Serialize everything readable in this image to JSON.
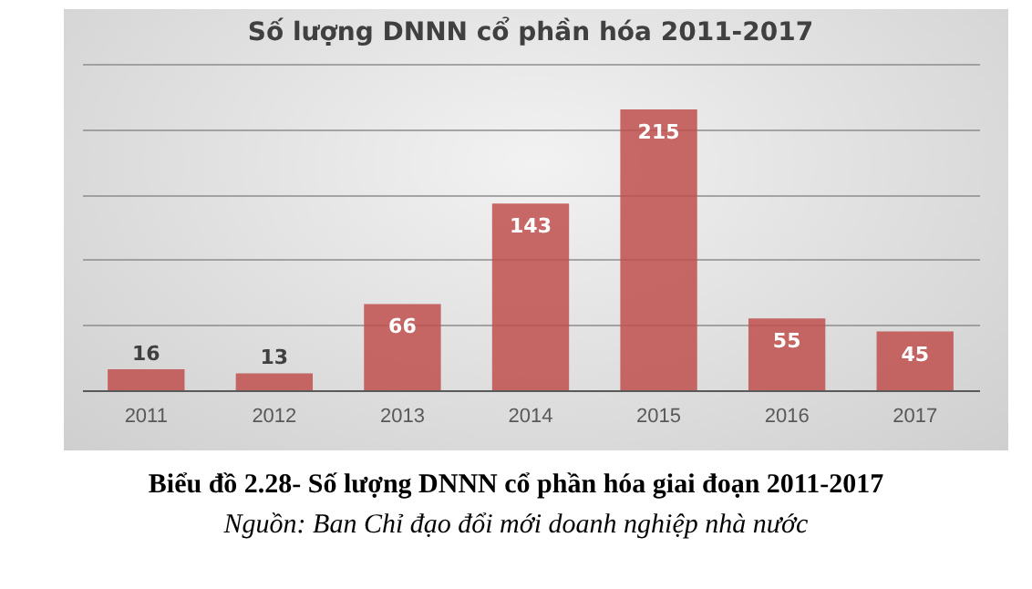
{
  "chart_data": {
    "type": "bar",
    "title": "Số lượng DNNN cổ phần hóa 2011-2017",
    "categories": [
      "2011",
      "2012",
      "2013",
      "2014",
      "2015",
      "2016",
      "2017"
    ],
    "values": [
      16,
      13,
      66,
      143,
      215,
      55,
      45
    ],
    "color": "#c0504d",
    "ylim": [
      0,
      250
    ],
    "yticks": [
      {
        "value": 0,
        "label": null
      },
      {
        "value": 50,
        "label": null
      },
      {
        "value": 100,
        "label": null
      },
      {
        "value": 150,
        "label": null
      },
      {
        "value": 200,
        "label": null
      },
      {
        "value": 250,
        "label": null
      }
    ],
    "tick_labels": "x",
    "grid": "y",
    "data_labels": true,
    "annotations": [
      "Biểu đồ 2.28- Số lượng DNNN cổ phần hóa giai đoạn 2011-2017",
      "Nguồn: Ban Chỉ đạo đổi mới doanh nghiệp nhà nước"
    ]
  }
}
